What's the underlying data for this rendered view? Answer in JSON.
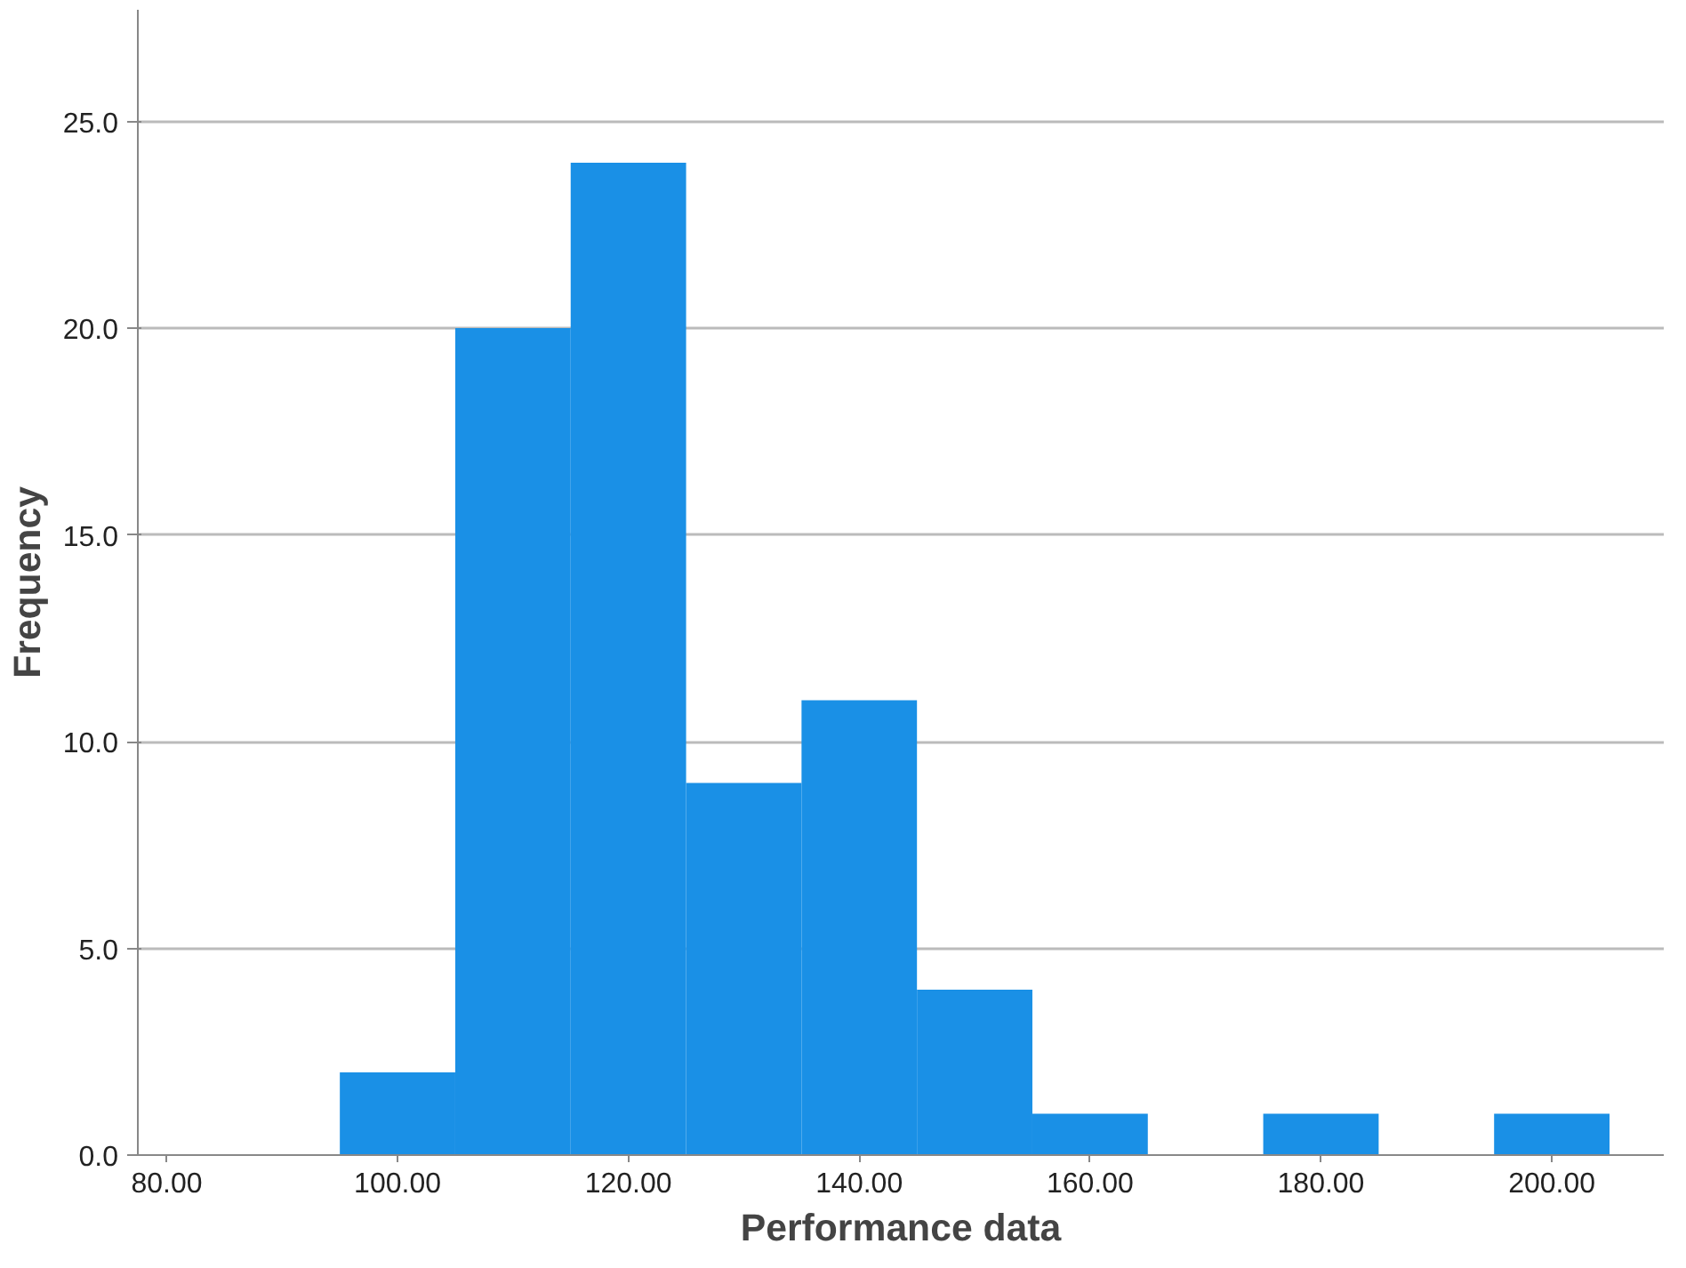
{
  "chart_data": {
    "type": "histogram",
    "xlabel": "Performance data",
    "ylabel": "Frequency",
    "bins": [
      95,
      105,
      115,
      125,
      135,
      145,
      155,
      165,
      175,
      185,
      195,
      205
    ],
    "values": [
      2,
      20,
      24,
      9,
      11,
      4,
      1,
      0,
      1,
      0,
      1
    ],
    "color": "#1a90e6",
    "xlim": [
      77.5,
      209.7
    ],
    "ylim": [
      0,
      27.7
    ],
    "xticks": [
      {
        "value": 80,
        "label": "80.00"
      },
      {
        "value": 100,
        "label": "100.00"
      },
      {
        "value": 120,
        "label": "120.00"
      },
      {
        "value": 140,
        "label": "140.00"
      },
      {
        "value": 160,
        "label": "160.00"
      },
      {
        "value": 180,
        "label": "180.00"
      },
      {
        "value": 200,
        "label": "200.00"
      }
    ],
    "yticks": [
      {
        "value": 0,
        "label": "0.0"
      },
      {
        "value": 5,
        "label": "5.0"
      },
      {
        "value": 10,
        "label": "10.0"
      },
      {
        "value": 15,
        "label": "15.0"
      },
      {
        "value": 20,
        "label": "20.0"
      },
      {
        "value": 25,
        "label": "25.0"
      }
    ],
    "grid": "y"
  }
}
